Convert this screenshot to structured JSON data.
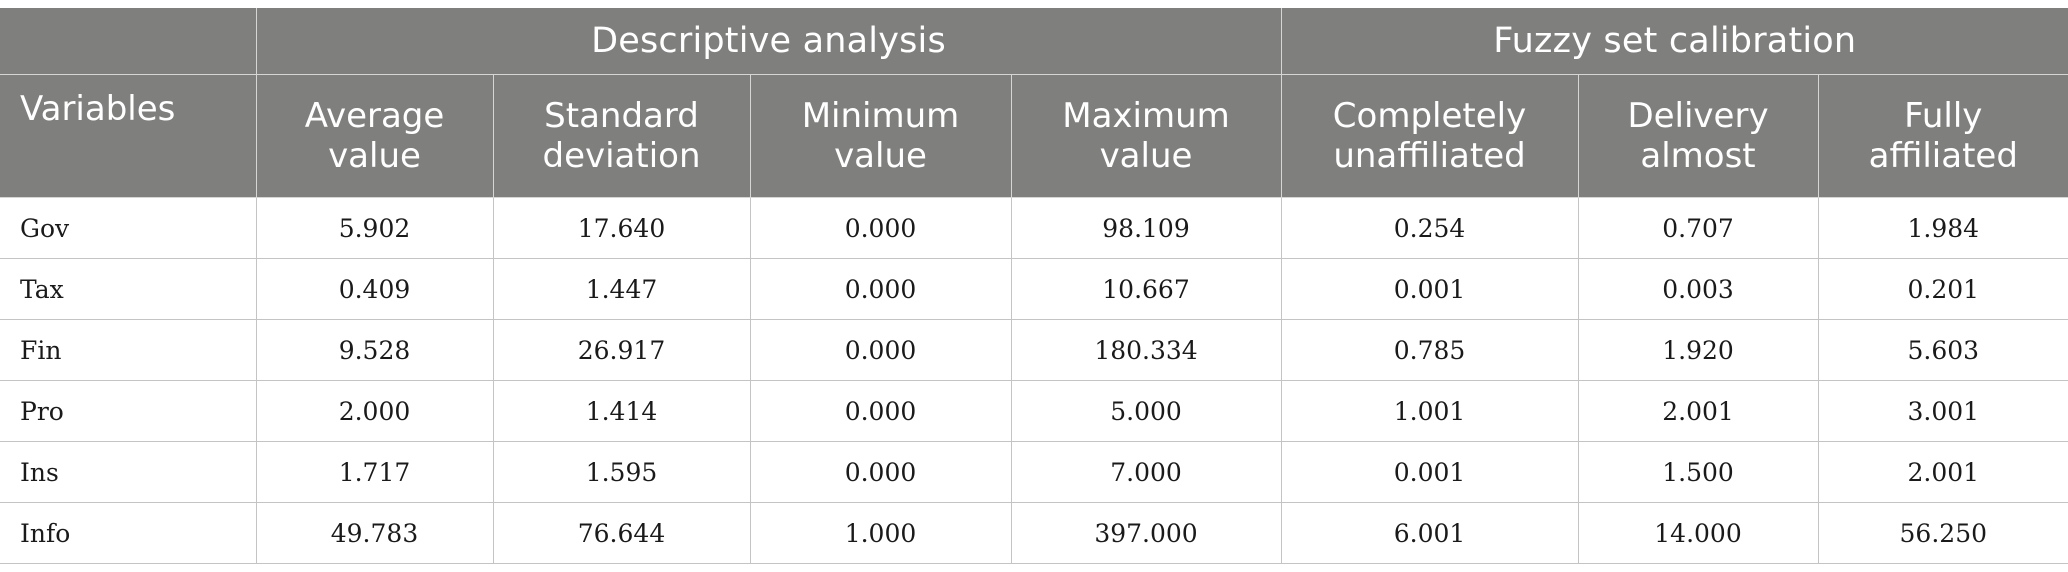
{
  "table": {
    "group_headers": {
      "blank": "",
      "descriptive": "Descriptive analysis",
      "fuzzy": "Fuzzy set calibration"
    },
    "column_headers": {
      "variables": "Variables",
      "average": [
        "Average",
        "value"
      ],
      "std": [
        "Standard",
        "deviation"
      ],
      "minimum": [
        "Minimum",
        "value"
      ],
      "maximum": [
        "Maximum",
        "value"
      ],
      "completely": [
        "Completely",
        "unaffiliated"
      ],
      "delivery": [
        "Delivery",
        "almost"
      ],
      "fully": [
        "Fully",
        "affiliated"
      ]
    },
    "rows": [
      {
        "variable": "Gov",
        "average": "5.902",
        "std": "17.640",
        "min": "0.000",
        "max": "98.109",
        "completely": "0.254",
        "delivery": "0.707",
        "fully": "1.984"
      },
      {
        "variable": "Tax",
        "average": "0.409",
        "std": "1.447",
        "min": "0.000",
        "max": "10.667",
        "completely": "0.001",
        "delivery": "0.003",
        "fully": "0.201"
      },
      {
        "variable": "Fin",
        "average": "9.528",
        "std": "26.917",
        "min": "0.000",
        "max": "180.334",
        "completely": "0.785",
        "delivery": "1.920",
        "fully": "5.603"
      },
      {
        "variable": "Pro",
        "average": "2.000",
        "std": "1.414",
        "min": "0.000",
        "max": "5.000",
        "completely": "1.001",
        "delivery": "2.001",
        "fully": "3.001"
      },
      {
        "variable": "Ins",
        "average": "1.717",
        "std": "1.595",
        "min": "0.000",
        "max": "7.000",
        "completely": "0.001",
        "delivery": "1.500",
        "fully": "2.001"
      },
      {
        "variable": "Info",
        "average": "49.783",
        "std": "76.644",
        "min": "1.000",
        "max": "397.000",
        "completely": "6.001",
        "delivery": "14.000",
        "fully": "56.250"
      }
    ]
  },
  "colors": {
    "header_bg": "#7f807e",
    "header_text": "#ffffff",
    "grid_line": "#c4c4c4"
  }
}
